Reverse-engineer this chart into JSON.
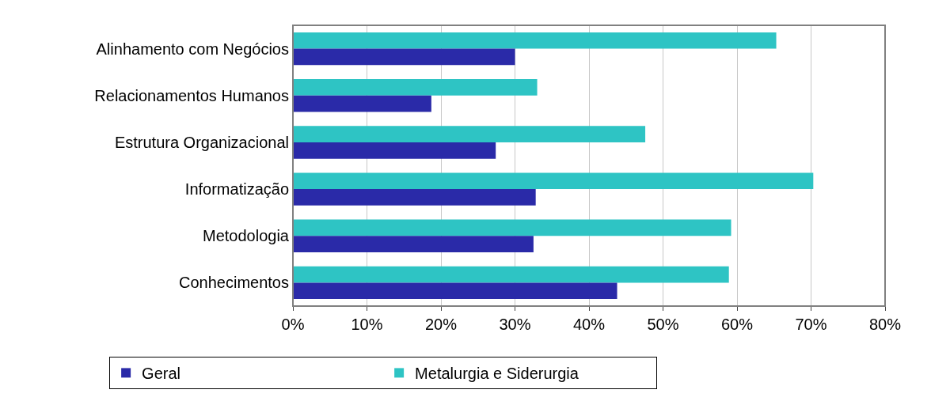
{
  "chart_data": {
    "type": "bar",
    "orientation": "horizontal",
    "categories": [
      "Alinhamento com Negócios",
      "Relacionamentos Humanos",
      "Estrutura Organizacional",
      "Informatização",
      "Metodologia",
      "Conhecimentos"
    ],
    "series": [
      {
        "name": "Metalurgia e Siderurgia",
        "color": "#2ec4c4",
        "values": [
          65.3,
          33.0,
          47.6,
          70.3,
          59.2,
          58.9
        ]
      },
      {
        "name": "Geral",
        "color": "#2a2aa8",
        "values": [
          30.0,
          18.7,
          27.4,
          32.8,
          32.5,
          43.8
        ]
      }
    ],
    "xlim": [
      0,
      80
    ],
    "xticks": [
      {
        "value": 0,
        "label": "0%"
      },
      {
        "value": 10,
        "label": "10%"
      },
      {
        "value": 20,
        "label": "20%"
      },
      {
        "value": 30,
        "label": "30%"
      },
      {
        "value": 40,
        "label": "40%"
      },
      {
        "value": 50,
        "label": "50%"
      },
      {
        "value": 60,
        "label": "60%"
      },
      {
        "value": 70,
        "label": "70%"
      },
      {
        "value": 80,
        "label": "80%"
      }
    ],
    "grid": "x",
    "legend": "bottom left"
  }
}
